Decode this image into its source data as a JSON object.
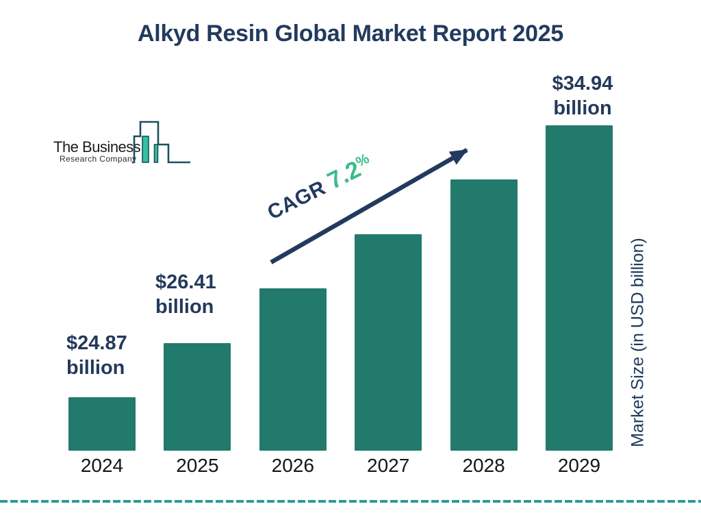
{
  "title": "Alkyd Resin Global Market Report 2025",
  "logo": {
    "name_line1": "The Business",
    "name_line2": "Research Company"
  },
  "cagr": {
    "prefix": "CAGR",
    "value": "7.2",
    "percent_sign": "%"
  },
  "axis": {
    "y_label": "Market Size (in USD billion)"
  },
  "chart_data": {
    "type": "bar",
    "title": "Alkyd Resin Global Market Report 2025",
    "categories": [
      "2024",
      "2025",
      "2026",
      "2027",
      "2028",
      "2029"
    ],
    "values": [
      24.87,
      26.41,
      28.31,
      30.35,
      32.54,
      34.94
    ],
    "series": [
      {
        "name": "Market Size (in USD billion)",
        "values": [
          24.87,
          26.41,
          28.31,
          30.35,
          32.54,
          34.94
        ]
      }
    ],
    "labeled_points": [
      {
        "index": 0,
        "lines": [
          "$24.87",
          "billion"
        ]
      },
      {
        "index": 1,
        "lines": [
          "$26.41",
          "billion"
        ]
      },
      {
        "index": 5,
        "lines": [
          "$34.94",
          "billion"
        ]
      }
    ],
    "cagr_percent": 7.2,
    "xlabel": "",
    "ylabel": "Market Size (in USD billion)",
    "grid": false,
    "legend": false,
    "bar_color": "#217A6C",
    "note_visible_values": "only 2024, 2025 and 2029 bars carry data labels; 2026-2028 values estimated from 7.2% CAGR"
  },
  "colors": {
    "navy": "#223A5E",
    "bar_teal": "#217A6C",
    "cagr_green": "#3ABD8B",
    "dash_teal": "#2E9C92",
    "logo_green": "#30C39E",
    "logo_outline": "#1D4E60"
  }
}
